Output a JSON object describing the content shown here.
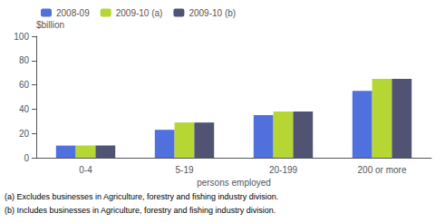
{
  "chart_data": {
    "type": "bar",
    "categories": [
      "0-4",
      "5-19",
      "20-199",
      "200 or more"
    ],
    "series": [
      {
        "name": "2008-09",
        "values": [
          10,
          23,
          35,
          55
        ]
      },
      {
        "name": "2009-10 (a)",
        "values": [
          10,
          29,
          38,
          65
        ]
      },
      {
        "name": "2009-10 (b)",
        "values": [
          10,
          29,
          38,
          65
        ]
      }
    ],
    "ylabel": "$billion",
    "xlabel": "persons employed",
    "ylim": [
      0,
      100
    ],
    "yticks": [
      0,
      20,
      40,
      60,
      80,
      100
    ],
    "grid": false,
    "legend": "upper left",
    "annotations": [
      "(a) Excludes businesses in Agriculture, forestry and fishing industry division.",
      "(b) Includes businesses in Agriculture, forestry and fishing industry division."
    ]
  }
}
